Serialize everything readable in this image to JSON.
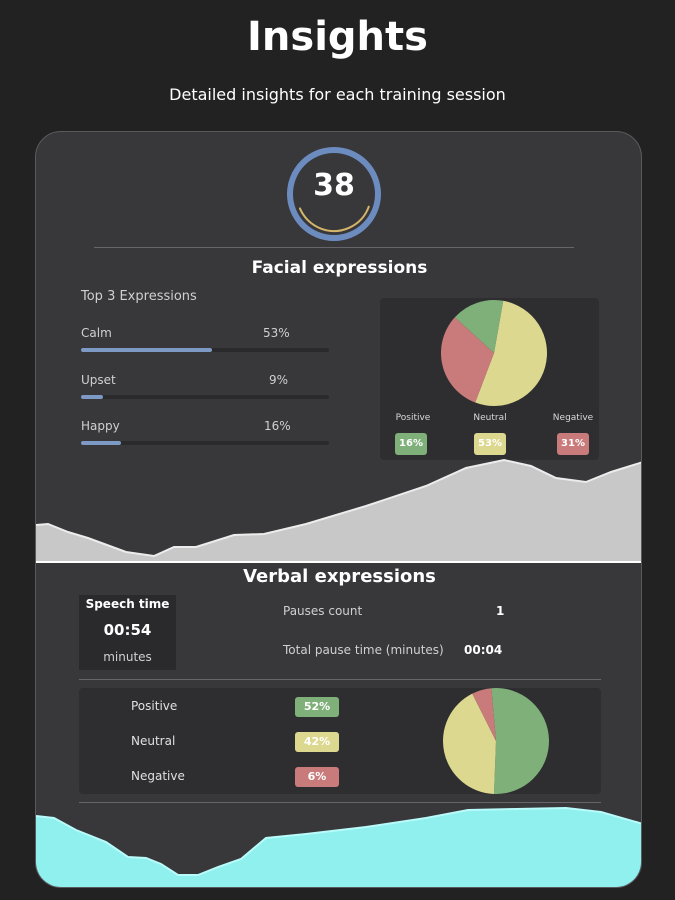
{
  "header": {
    "title": "Insights",
    "subtitle": "Detailed insights for each training session"
  },
  "score": {
    "value": "38",
    "progress": 0.38,
    "colors": {
      "ring": "#6c8cc0",
      "arc": "#d4b56a"
    }
  },
  "facial": {
    "title": "Facial expressions",
    "top_label": "Top 3 Expressions",
    "items": [
      {
        "label": "Calm",
        "pct_text": "53%",
        "pct": 53
      },
      {
        "label": "Upset",
        "pct_text": "9%",
        "pct": 9
      },
      {
        "label": "Happy",
        "pct_text": "16%",
        "pct": 16
      }
    ],
    "pie": {
      "legend": [
        {
          "label": "Positive",
          "value_text": "16%",
          "value": 16,
          "color": "#7fb07a"
        },
        {
          "label": "Neutral",
          "value_text": "53%",
          "value": 53,
          "color": "#dcd88f"
        },
        {
          "label": "Negative",
          "value_text": "31%",
          "value": 31,
          "color": "#c97b7b"
        }
      ]
    }
  },
  "verbal": {
    "title": "Verbal expressions",
    "speech_time": {
      "label": "Speech time",
      "value": "00:54",
      "unit": "minutes"
    },
    "pauses_count": {
      "label": "Pauses count",
      "value": "1"
    },
    "total_pause": {
      "label": "Total pause time (minutes)",
      "value": "00:04"
    },
    "sentiment": [
      {
        "label": "Positive",
        "value_text": "52%",
        "value": 52,
        "color": "#7fb07a"
      },
      {
        "label": "Neutral",
        "value_text": "42%",
        "value": 42,
        "color": "#dcd88f"
      },
      {
        "label": "Negative",
        "value_text": "6%",
        "value": 6,
        "color": "#c97b7b"
      }
    ]
  },
  "colors": {
    "background": "#222222",
    "card": "#38383b",
    "gray_wave": "#c8c8c8",
    "cyan_wave": "#8ff0ee"
  }
}
